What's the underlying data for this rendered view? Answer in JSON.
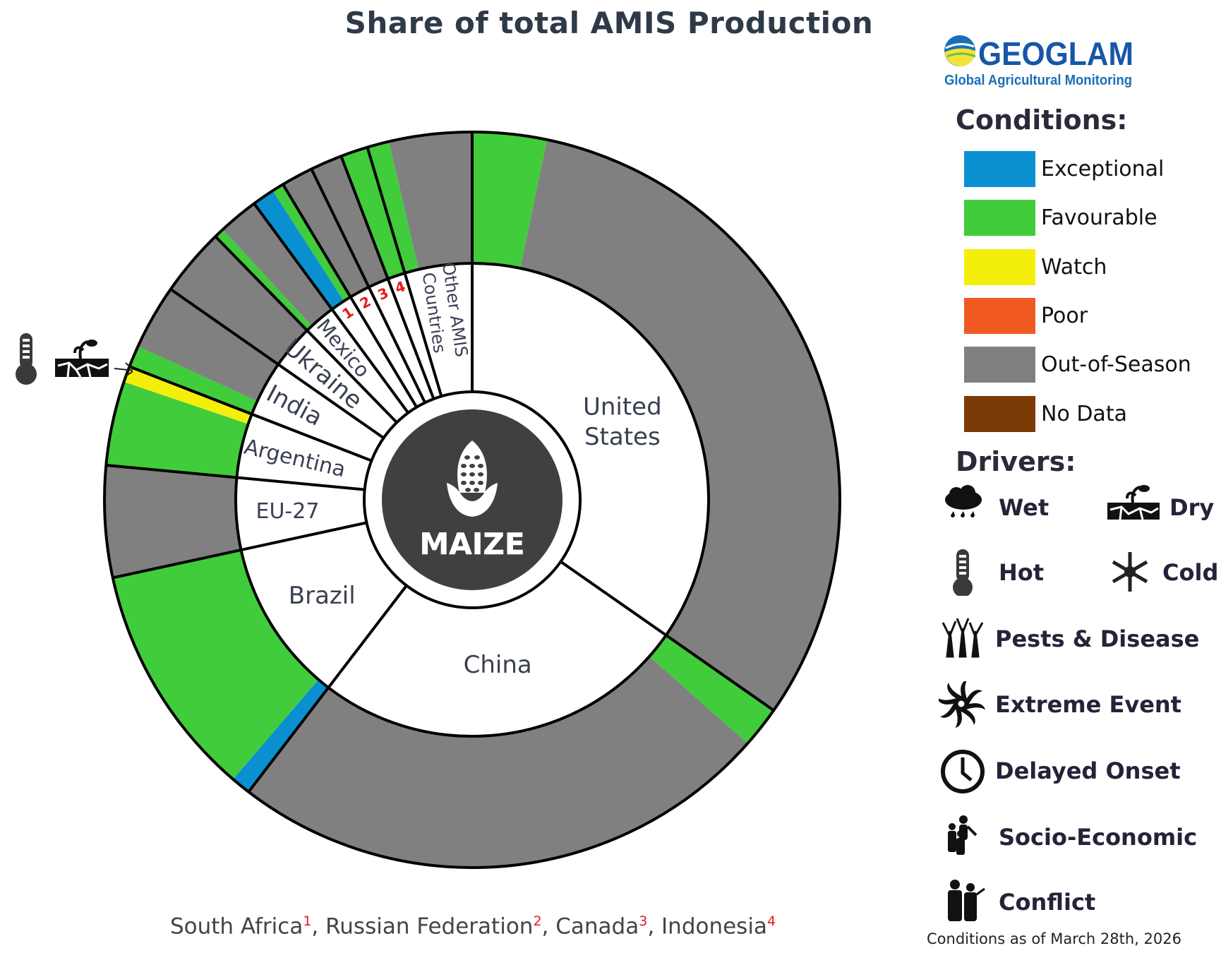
{
  "title": "Share of total AMIS Production",
  "center_label": "MAIZE",
  "logo": {
    "name": "GEOGLAM",
    "subtitle": "Global Agricultural Monitoring"
  },
  "footnote": [
    {
      "name": "South Africa",
      "mark": "1",
      "sep": ", "
    },
    {
      "name": "Russian Federation",
      "mark": "2",
      "sep": ", "
    },
    {
      "name": "Canada",
      "mark": "3",
      "sep": ", "
    },
    {
      "name": "Indonesia",
      "mark": "4",
      "sep": ""
    }
  ],
  "legend": {
    "conditions_title": "Conditions:",
    "conditions": [
      {
        "key": "exceptional",
        "label": "Exceptional",
        "color": "#0a8fd0"
      },
      {
        "key": "favourable",
        "label": "Favourable",
        "color": "#41cc3b"
      },
      {
        "key": "watch",
        "label": "Watch",
        "color": "#f4ef0a"
      },
      {
        "key": "poor",
        "label": "Poor",
        "color": "#f05a22"
      },
      {
        "key": "out_of_season",
        "label": "Out-of-Season",
        "color": "#808080"
      },
      {
        "key": "no_data",
        "label": "No Data",
        "color": "#7b3a05"
      }
    ],
    "drivers_title": "Drivers:",
    "drivers": [
      {
        "label": "Wet",
        "icon": "rain-cloud-icon"
      },
      {
        "label": "Dry",
        "icon": "dry-soil-icon"
      },
      {
        "label": "Hot",
        "icon": "thermometer-icon"
      },
      {
        "label": "Cold",
        "icon": "snowflake-icon"
      },
      {
        "label": "Pests & Disease",
        "icon": "dead-trees-icon"
      },
      {
        "label": "Extreme Event",
        "icon": "cyclone-icon"
      },
      {
        "label": "Delayed Onset",
        "icon": "clock-icon"
      },
      {
        "label": "Socio-Economic",
        "icon": "people-icon"
      },
      {
        "label": "Conflict",
        "icon": "soldiers-icon"
      }
    ]
  },
  "date_note": "Conditions as of March 28th, 2026",
  "annotation": {
    "country": "Argentina",
    "drivers": [
      "thermometer-icon",
      "dry-soil-icon"
    ]
  },
  "chart_data": {
    "type": "donut",
    "title": "Share of total AMIS Production",
    "crop": "MAIZE",
    "unit": "percent of total AMIS production (estimated from wedge angles)",
    "series": [
      {
        "name": "United States",
        "label_lines": [
          "United",
          "States"
        ],
        "share": 34.7,
        "conditions": [
          {
            "c": "favourable",
            "f": 0.094
          },
          {
            "c": "out_of_season",
            "f": 0.906
          }
        ]
      },
      {
        "name": "China",
        "label_lines": [
          "China"
        ],
        "share": 25.7,
        "conditions": [
          {
            "c": "favourable",
            "f": 0.071
          },
          {
            "c": "out_of_season",
            "f": 0.929
          }
        ]
      },
      {
        "name": "Brazil",
        "label_lines": [
          "Brazil"
        ],
        "share": 11.2,
        "conditions": [
          {
            "c": "exceptional",
            "f": 0.077
          },
          {
            "c": "favourable",
            "f": 0.923
          }
        ]
      },
      {
        "name": "EU-27",
        "label_lines": [
          "EU-27"
        ],
        "share": 4.9,
        "conditions": [
          {
            "c": "out_of_season",
            "f": 1.0
          }
        ]
      },
      {
        "name": "Argentina",
        "label_lines": [
          "Argentina"
        ],
        "share": 4.4,
        "conditions": [
          {
            "c": "favourable",
            "f": 0.84
          },
          {
            "c": "watch",
            "f": 0.16
          }
        ]
      },
      {
        "name": "India",
        "label_lines": [
          "India"
        ],
        "share": 3.8,
        "conditions": [
          {
            "c": "favourable",
            "f": 0.25
          },
          {
            "c": "out_of_season",
            "f": 0.75
          }
        ]
      },
      {
        "name": "Ukraine",
        "label_lines": [
          "Ukraine"
        ],
        "share": 3.0,
        "conditions": [
          {
            "c": "out_of_season",
            "f": 1.0
          }
        ]
      },
      {
        "name": "Mexico",
        "label_lines": [
          "Mexico"
        ],
        "share": 2.2,
        "conditions": [
          {
            "c": "favourable",
            "f": 0.2
          },
          {
            "c": "out_of_season",
            "f": 0.8
          }
        ]
      },
      {
        "name": "South Africa",
        "label_lines": [
          "1"
        ],
        "share": 1.5,
        "conditions": [
          {
            "c": "exceptional",
            "f": 0.65
          },
          {
            "c": "favourable",
            "f": 0.35
          }
        ]
      },
      {
        "name": "Russian Federation",
        "label_lines": [
          "2"
        ],
        "share": 1.4,
        "conditions": [
          {
            "c": "out_of_season",
            "f": 1.0
          }
        ]
      },
      {
        "name": "Canada",
        "label_lines": [
          "3"
        ],
        "share": 1.4,
        "conditions": [
          {
            "c": "out_of_season",
            "f": 1.0
          }
        ]
      },
      {
        "name": "Indonesia",
        "label_lines": [
          "4"
        ],
        "share": 1.2,
        "conditions": [
          {
            "c": "favourable",
            "f": 1.0
          }
        ]
      },
      {
        "name": "Other AMIS Countries",
        "label_lines": [
          "Other AMIS",
          "Countries"
        ],
        "share": 4.6,
        "conditions": [
          {
            "c": "favourable",
            "f": 0.21
          },
          {
            "c": "out_of_season",
            "f": 0.79
          }
        ]
      }
    ]
  }
}
